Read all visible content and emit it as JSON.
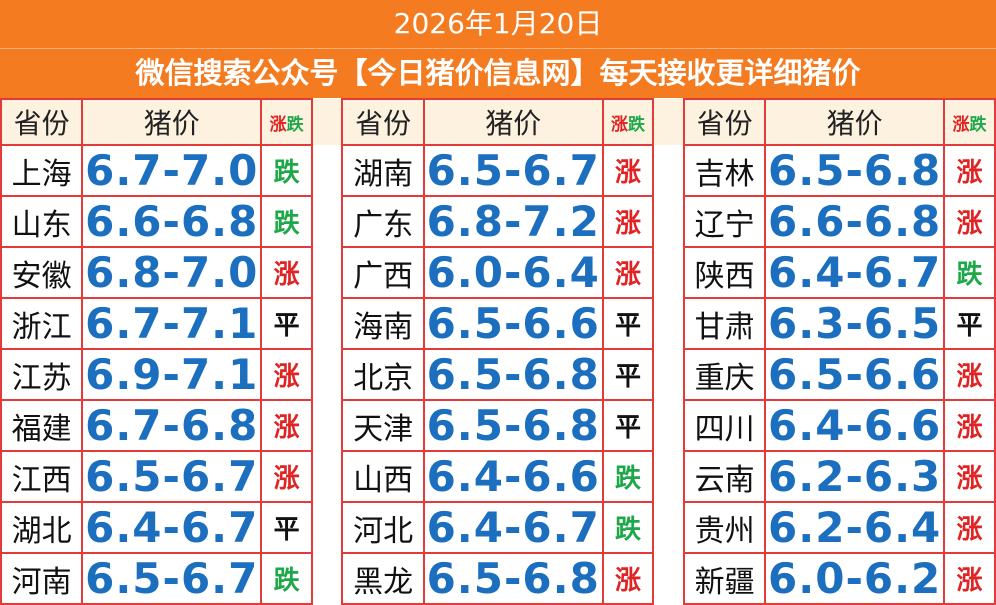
{
  "header": {
    "date": "2026年1月20日",
    "subtitle": "微信搜索公众号【今日猪价信息网】每天接收更详细猪价"
  },
  "table": {
    "columns": {
      "province": "省份",
      "price": "猪价",
      "trend_up": "涨",
      "trend_down": "跌"
    },
    "groups": [
      [
        [
          "上海",
          "6.7-7.0",
          "跌"
        ],
        [
          "山东",
          "6.6-6.8",
          "跌"
        ],
        [
          "安徽",
          "6.8-7.0",
          "涨"
        ],
        [
          "浙江",
          "6.7-7.1",
          "平"
        ],
        [
          "江苏",
          "6.9-7.1",
          "涨"
        ],
        [
          "福建",
          "6.7-6.8",
          "涨"
        ],
        [
          "江西",
          "6.5-6.7",
          "涨"
        ],
        [
          "湖北",
          "6.4-6.7",
          "平"
        ],
        [
          "河南",
          "6.5-6.7",
          "跌"
        ]
      ],
      [
        [
          "湖南",
          "6.5-6.7",
          "涨"
        ],
        [
          "广东",
          "6.8-7.2",
          "涨"
        ],
        [
          "广西",
          "6.0-6.4",
          "涨"
        ],
        [
          "海南",
          "6.5-6.6",
          "平"
        ],
        [
          "北京",
          "6.5-6.8",
          "平"
        ],
        [
          "天津",
          "6.5-6.8",
          "平"
        ],
        [
          "山西",
          "6.4-6.6",
          "跌"
        ],
        [
          "河北",
          "6.4-6.7",
          "跌"
        ],
        [
          "黑龙",
          "6.5-6.8",
          "涨"
        ]
      ],
      [
        [
          "吉林",
          "6.5-6.8",
          "涨"
        ],
        [
          "辽宁",
          "6.6-6.8",
          "涨"
        ],
        [
          "陕西",
          "6.4-6.7",
          "跌"
        ],
        [
          "甘肃",
          "6.3-6.5",
          "平"
        ],
        [
          "重庆",
          "6.5-6.6",
          "涨"
        ],
        [
          "四川",
          "6.4-6.6",
          "涨"
        ],
        [
          "云南",
          "6.2-6.3",
          "涨"
        ],
        [
          "贵州",
          "6.2-6.4",
          "涨"
        ],
        [
          "新疆",
          "6.0-6.2",
          "涨"
        ]
      ]
    ]
  }
}
